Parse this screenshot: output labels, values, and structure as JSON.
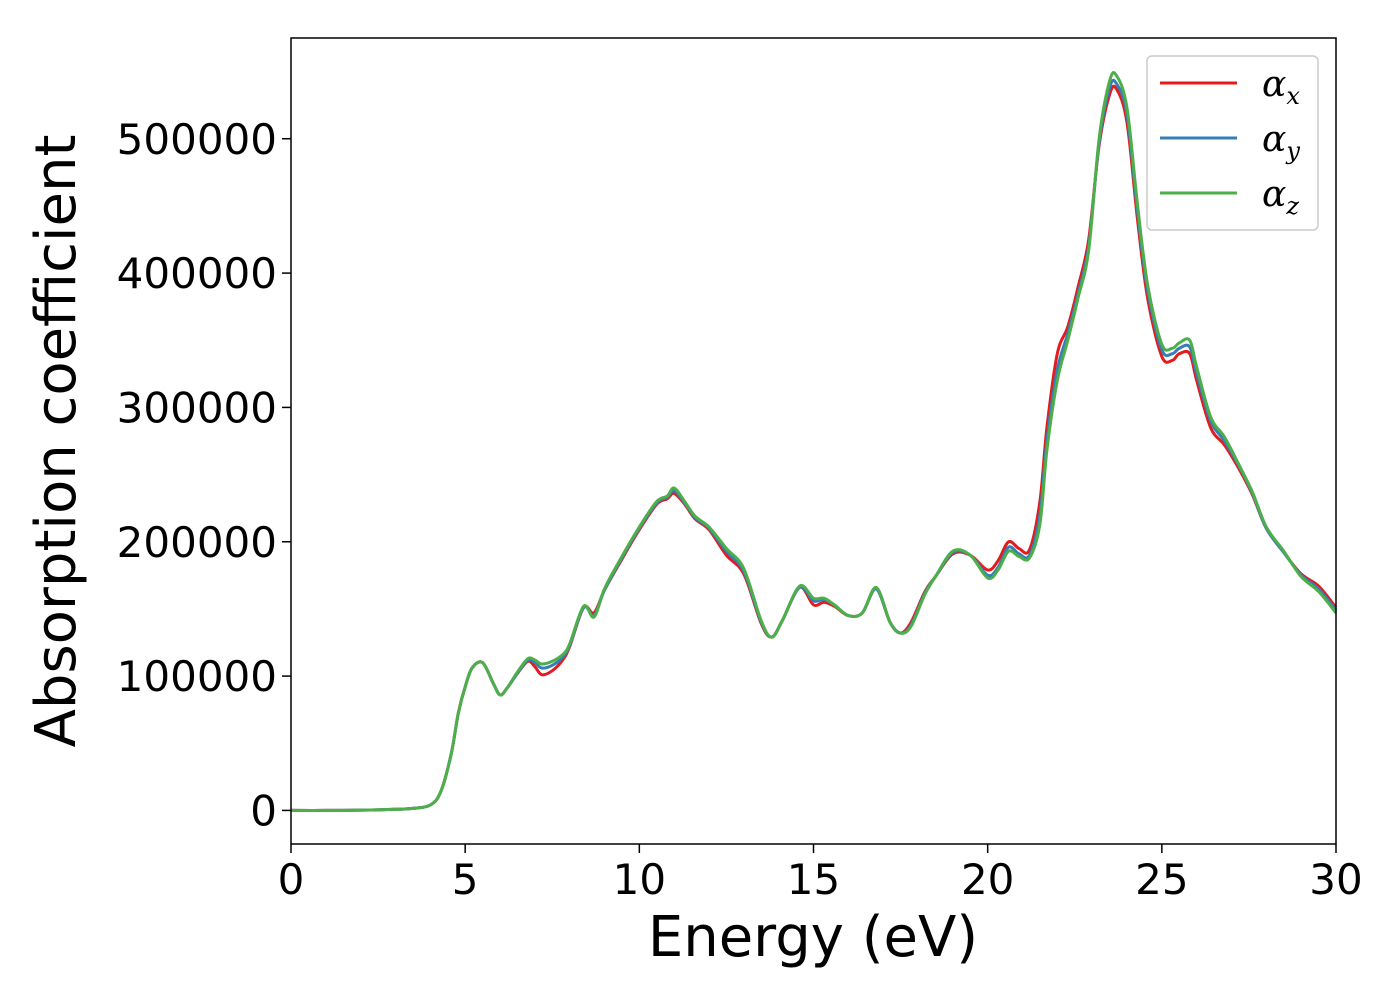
{
  "chart_data": {
    "type": "line",
    "title": "",
    "xlabel": "Energy (eV)",
    "ylabel": "Absorption coefficient",
    "xlim": [
      0,
      30
    ],
    "ylim": [
      -25000,
      575000
    ],
    "xticks": [
      0,
      5,
      10,
      15,
      20,
      25,
      30
    ],
    "yticks": [
      0,
      100000,
      200000,
      300000,
      400000,
      500000
    ],
    "grid": false,
    "legend_position": "top-right",
    "x": [
      0,
      1,
      2,
      3,
      3.5,
      4,
      4.3,
      4.6,
      4.8,
      5,
      5.2,
      5.5,
      5.8,
      6.0,
      6.2,
      6.5,
      6.8,
      7.0,
      7.2,
      7.5,
      7.8,
      8.0,
      8.4,
      8.7,
      9.0,
      9.5,
      10.0,
      10.5,
      10.8,
      11.0,
      11.3,
      11.6,
      12.0,
      12.5,
      13.0,
      13.5,
      13.8,
      14.1,
      14.6,
      15.0,
      15.3,
      15.6,
      16.0,
      16.4,
      16.8,
      17.2,
      17.5,
      17.8,
      18.2,
      18.5,
      19.0,
      19.5,
      20.0,
      20.3,
      20.6,
      20.9,
      21.2,
      21.5,
      21.7,
      22.0,
      22.3,
      22.6,
      22.9,
      23.2,
      23.5,
      23.7,
      24.0,
      24.3,
      24.6,
      25.0,
      25.3,
      25.5,
      25.8,
      26.0,
      26.4,
      26.8,
      27.2,
      27.6,
      28.0,
      28.5,
      29.0,
      29.5,
      30.0
    ],
    "series": [
      {
        "name": "α_x",
        "color": "#e41a1c",
        "values": [
          0,
          0,
          200,
          800,
          1500,
          4000,
          14000,
          42000,
          72000,
          92000,
          106000,
          110000,
          95000,
          86000,
          91000,
          102000,
          111000,
          107000,
          101000,
          104000,
          112000,
          122000,
          151000,
          147000,
          164000,
          187000,
          209000,
          228000,
          232000,
          236000,
          228000,
          217000,
          209000,
          190000,
          176000,
          139000,
          129000,
          141000,
          166000,
          153000,
          155000,
          152000,
          145000,
          147000,
          165000,
          140000,
          132000,
          140000,
          163000,
          174000,
          191000,
          190000,
          179000,
          186000,
          200000,
          195000,
          194000,
          230000,
          285000,
          340000,
          360000,
          390000,
          425000,
          495000,
          533000,
          537000,
          512000,
          440000,
          380000,
          338000,
          335000,
          340000,
          340000,
          320000,
          285000,
          272000,
          255000,
          235000,
          210000,
          192000,
          176000,
          167000,
          151000
        ]
      },
      {
        "name": "α_y",
        "color": "#377eb8",
        "values": [
          0,
          0,
          200,
          800,
          1500,
          4000,
          14000,
          42000,
          72000,
          92000,
          106000,
          110000,
          95000,
          86000,
          91000,
          102000,
          112000,
          110000,
          106000,
          108000,
          114000,
          123000,
          151000,
          145000,
          164000,
          188000,
          210000,
          229000,
          233000,
          238000,
          229000,
          218000,
          210000,
          193000,
          178000,
          140000,
          129000,
          141000,
          166000,
          156000,
          157000,
          153000,
          145000,
          147000,
          165000,
          140000,
          132000,
          138000,
          162000,
          174000,
          192000,
          190000,
          175000,
          181000,
          196000,
          191000,
          190000,
          220000,
          275000,
          328000,
          355000,
          385000,
          420000,
          497000,
          538000,
          541000,
          518000,
          446000,
          386000,
          343000,
          340000,
          344000,
          345000,
          325000,
          290000,
          275000,
          257000,
          236000,
          210000,
          192000,
          175000,
          165000,
          149000
        ]
      },
      {
        "name": "α_z",
        "color": "#4daf4a",
        "values": [
          0,
          0,
          200,
          800,
          1500,
          4000,
          14000,
          42000,
          72000,
          92000,
          106000,
          110000,
          95000,
          86000,
          91000,
          103000,
          113000,
          112000,
          109000,
          111000,
          116000,
          124000,
          152000,
          144000,
          165000,
          189000,
          211000,
          230000,
          234000,
          240000,
          230000,
          219000,
          211000,
          195000,
          180000,
          141000,
          129000,
          141000,
          167000,
          158000,
          158000,
          153000,
          145000,
          147000,
          166000,
          140000,
          132000,
          137000,
          161000,
          174000,
          193000,
          190000,
          173000,
          179000,
          193000,
          189000,
          188000,
          213000,
          268000,
          320000,
          350000,
          382000,
          417000,
          500000,
          543000,
          547000,
          523000,
          451000,
          390000,
          347000,
          344000,
          348000,
          350000,
          330000,
          293000,
          278000,
          258000,
          237000,
          211000,
          193000,
          174000,
          163000,
          147000
        ]
      }
    ]
  }
}
